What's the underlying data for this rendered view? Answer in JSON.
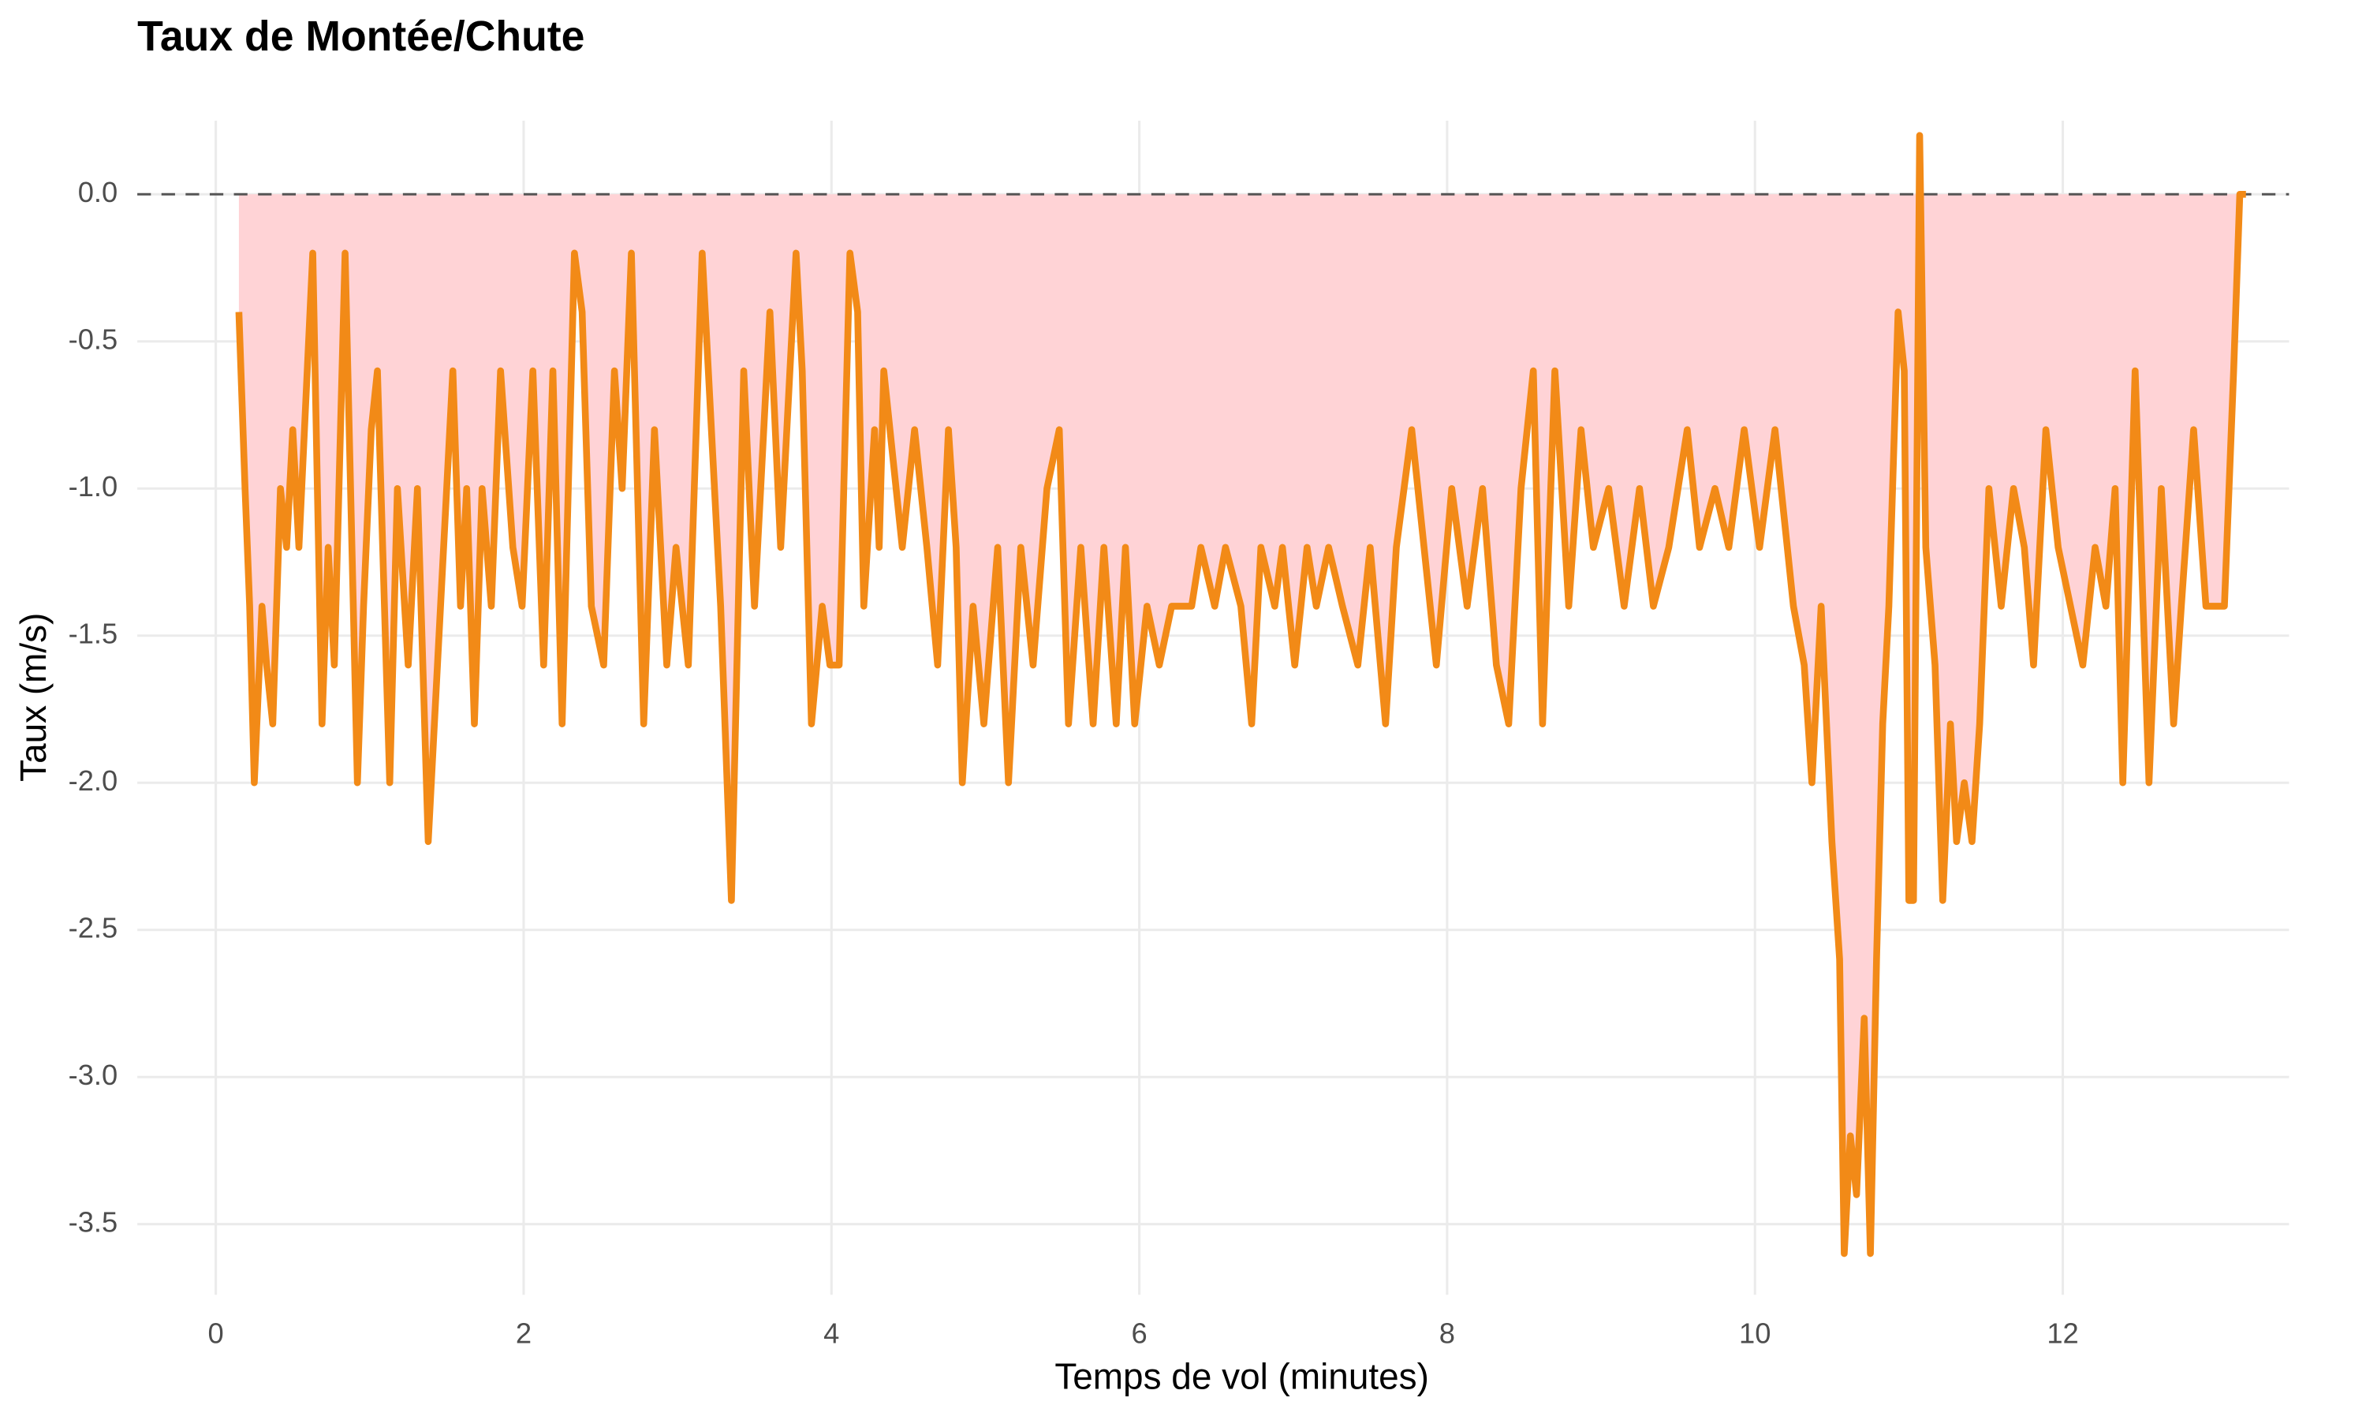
{
  "chart_data": {
    "type": "line",
    "title": "Taux de Montée/Chute",
    "x_label": "Temps de vol (minutes)",
    "y_label": "Taux (m/s)",
    "color": "#f28a17",
    "fill_color": "#ffd3d6",
    "hline": 0,
    "grid": true,
    "xlim": [
      -0.51,
      13.47
    ],
    "ylim": [
      -3.74,
      0.25
    ],
    "xticks": [
      0,
      2,
      4,
      6,
      8,
      10,
      12
    ],
    "yticks": [
      {
        "value": 0,
        "label": "0.0"
      },
      -0.5,
      {
        "value": -1,
        "label": "-1.0"
      },
      -1.5,
      {
        "value": -2,
        "label": "-2.0"
      },
      -2.5,
      {
        "value": -3,
        "label": "-3.0"
      },
      -3.5
    ],
    "x": [
      0.15,
      0.19,
      0.22,
      0.25,
      0.3,
      0.33,
      0.37,
      0.42,
      0.46,
      0.5,
      0.54,
      0.63,
      0.69,
      0.73,
      0.77,
      0.84,
      0.92,
      0.96,
      1.01,
      1.05,
      1.13,
      1.18,
      1.25,
      1.31,
      1.38,
      1.44,
      1.54,
      1.59,
      1.63,
      1.68,
      1.73,
      1.79,
      1.85,
      1.93,
      1.99,
      2.06,
      2.13,
      2.19,
      2.25,
      2.33,
      2.38,
      2.44,
      2.52,
      2.59,
      2.64,
      2.7,
      2.78,
      2.85,
      2.93,
      2.99,
      3.07,
      3.16,
      3.24,
      3.28,
      3.35,
      3.43,
      3.5,
      3.6,
      3.67,
      3.77,
      3.81,
      3.87,
      3.94,
      3.99,
      4.05,
      4.12,
      4.17,
      4.21,
      4.28,
      4.31,
      4.34,
      4.46,
      4.54,
      4.62,
      4.69,
      4.76,
      4.81,
      4.85,
      4.92,
      4.99,
      5.08,
      5.15,
      5.23,
      5.31,
      5.4,
      5.48,
      5.54,
      5.62,
      5.7,
      5.77,
      5.85,
      5.91,
      5.97,
      6.05,
      6.13,
      6.21,
      6.34,
      6.4,
      6.49,
      6.56,
      6.66,
      6.73,
      6.79,
      6.88,
      6.93,
      7.01,
      7.09,
      7.15,
      7.23,
      7.32,
      7.42,
      7.5,
      7.6,
      7.67,
      7.77,
      7.85,
      7.93,
      8.03,
      8.13,
      8.23,
      8.32,
      8.4,
      8.48,
      8.56,
      8.62,
      8.7,
      8.79,
      8.87,
      8.95,
      9.05,
      9.15,
      9.25,
      9.34,
      9.44,
      9.56,
      9.64,
      9.74,
      9.83,
      9.93,
      10.03,
      10.13,
      10.25,
      10.32,
      10.37,
      10.43,
      10.5,
      10.55,
      10.58,
      10.62,
      10.66,
      10.71,
      10.75,
      10.79,
      10.83,
      10.87,
      10.93,
      10.97,
      11.0,
      11.03,
      11.07,
      11.11,
      11.17,
      11.22,
      11.27,
      11.31,
      11.36,
      11.41,
      11.46,
      11.52,
      11.6,
      11.68,
      11.75,
      11.81,
      11.89,
      11.97,
      12.05,
      12.13,
      12.21,
      12.28,
      12.34,
      12.39,
      12.47,
      12.56,
      12.64,
      12.72,
      12.77,
      12.85,
      12.93,
      13.05,
      13.11,
      13.15,
      13.19
    ],
    "values": [
      -0.4,
      -1.0,
      -1.4,
      -2.0,
      -1.4,
      -1.6,
      -1.8,
      -1.0,
      -1.2,
      -0.8,
      -1.2,
      -0.2,
      -1.8,
      -1.2,
      -1.6,
      -0.2,
      -2.0,
      -1.4,
      -0.8,
      -0.6,
      -2.0,
      -1.0,
      -1.6,
      -1.0,
      -2.2,
      -1.6,
      -0.6,
      -1.4,
      -1.0,
      -1.8,
      -1.0,
      -1.4,
      -0.6,
      -1.2,
      -1.4,
      -0.6,
      -1.6,
      -0.6,
      -1.8,
      -0.2,
      -0.4,
      -1.4,
      -1.6,
      -0.6,
      -1.0,
      -0.2,
      -1.8,
      -0.8,
      -1.6,
      -1.2,
      -1.6,
      -0.2,
      -1.0,
      -1.4,
      -2.4,
      -0.6,
      -1.4,
      -0.4,
      -1.2,
      -0.2,
      -0.6,
      -1.8,
      -1.4,
      -1.6,
      -1.6,
      -0.2,
      -0.4,
      -1.4,
      -0.8,
      -1.2,
      -0.6,
      -1.2,
      -0.8,
      -1.2,
      -1.6,
      -0.8,
      -1.2,
      -2.0,
      -1.4,
      -1.8,
      -1.2,
      -2.0,
      -1.2,
      -1.6,
      -1.0,
      -0.8,
      -1.8,
      -1.2,
      -1.8,
      -1.2,
      -1.8,
      -1.2,
      -1.8,
      -1.4,
      -1.6,
      -1.4,
      -1.4,
      -1.2,
      -1.4,
      -1.2,
      -1.4,
      -1.8,
      -1.2,
      -1.4,
      -1.2,
      -1.6,
      -1.2,
      -1.4,
      -1.2,
      -1.4,
      -1.6,
      -1.2,
      -1.8,
      -1.2,
      -0.8,
      -1.2,
      -1.6,
      -1.0,
      -1.4,
      -1.0,
      -1.6,
      -1.8,
      -1.0,
      -0.6,
      -1.8,
      -0.6,
      -1.4,
      -0.8,
      -1.2,
      -1.0,
      -1.4,
      -1.0,
      -1.4,
      -1.2,
      -0.8,
      -1.2,
      -1.0,
      -1.2,
      -0.8,
      -1.2,
      -0.8,
      -1.4,
      -1.6,
      -2.0,
      -1.4,
      -2.2,
      -2.6,
      -3.6,
      -3.2,
      -3.4,
      -2.8,
      -3.6,
      -2.6,
      -1.8,
      -1.4,
      -0.4,
      -0.6,
      -2.4,
      -2.4,
      0.2,
      -1.2,
      -1.6,
      -2.4,
      -1.8,
      -2.2,
      -2.0,
      -2.2,
      -1.8,
      -1.0,
      -1.4,
      -1.0,
      -1.2,
      -1.6,
      -0.8,
      -1.2,
      -1.4,
      -1.6,
      -1.2,
      -1.4,
      -1.0,
      -2.0,
      -0.6,
      -2.0,
      -1.0,
      -1.8,
      -1.4,
      -0.8,
      -1.4,
      -1.4,
      -0.6,
      0.0,
      0.0
    ]
  }
}
